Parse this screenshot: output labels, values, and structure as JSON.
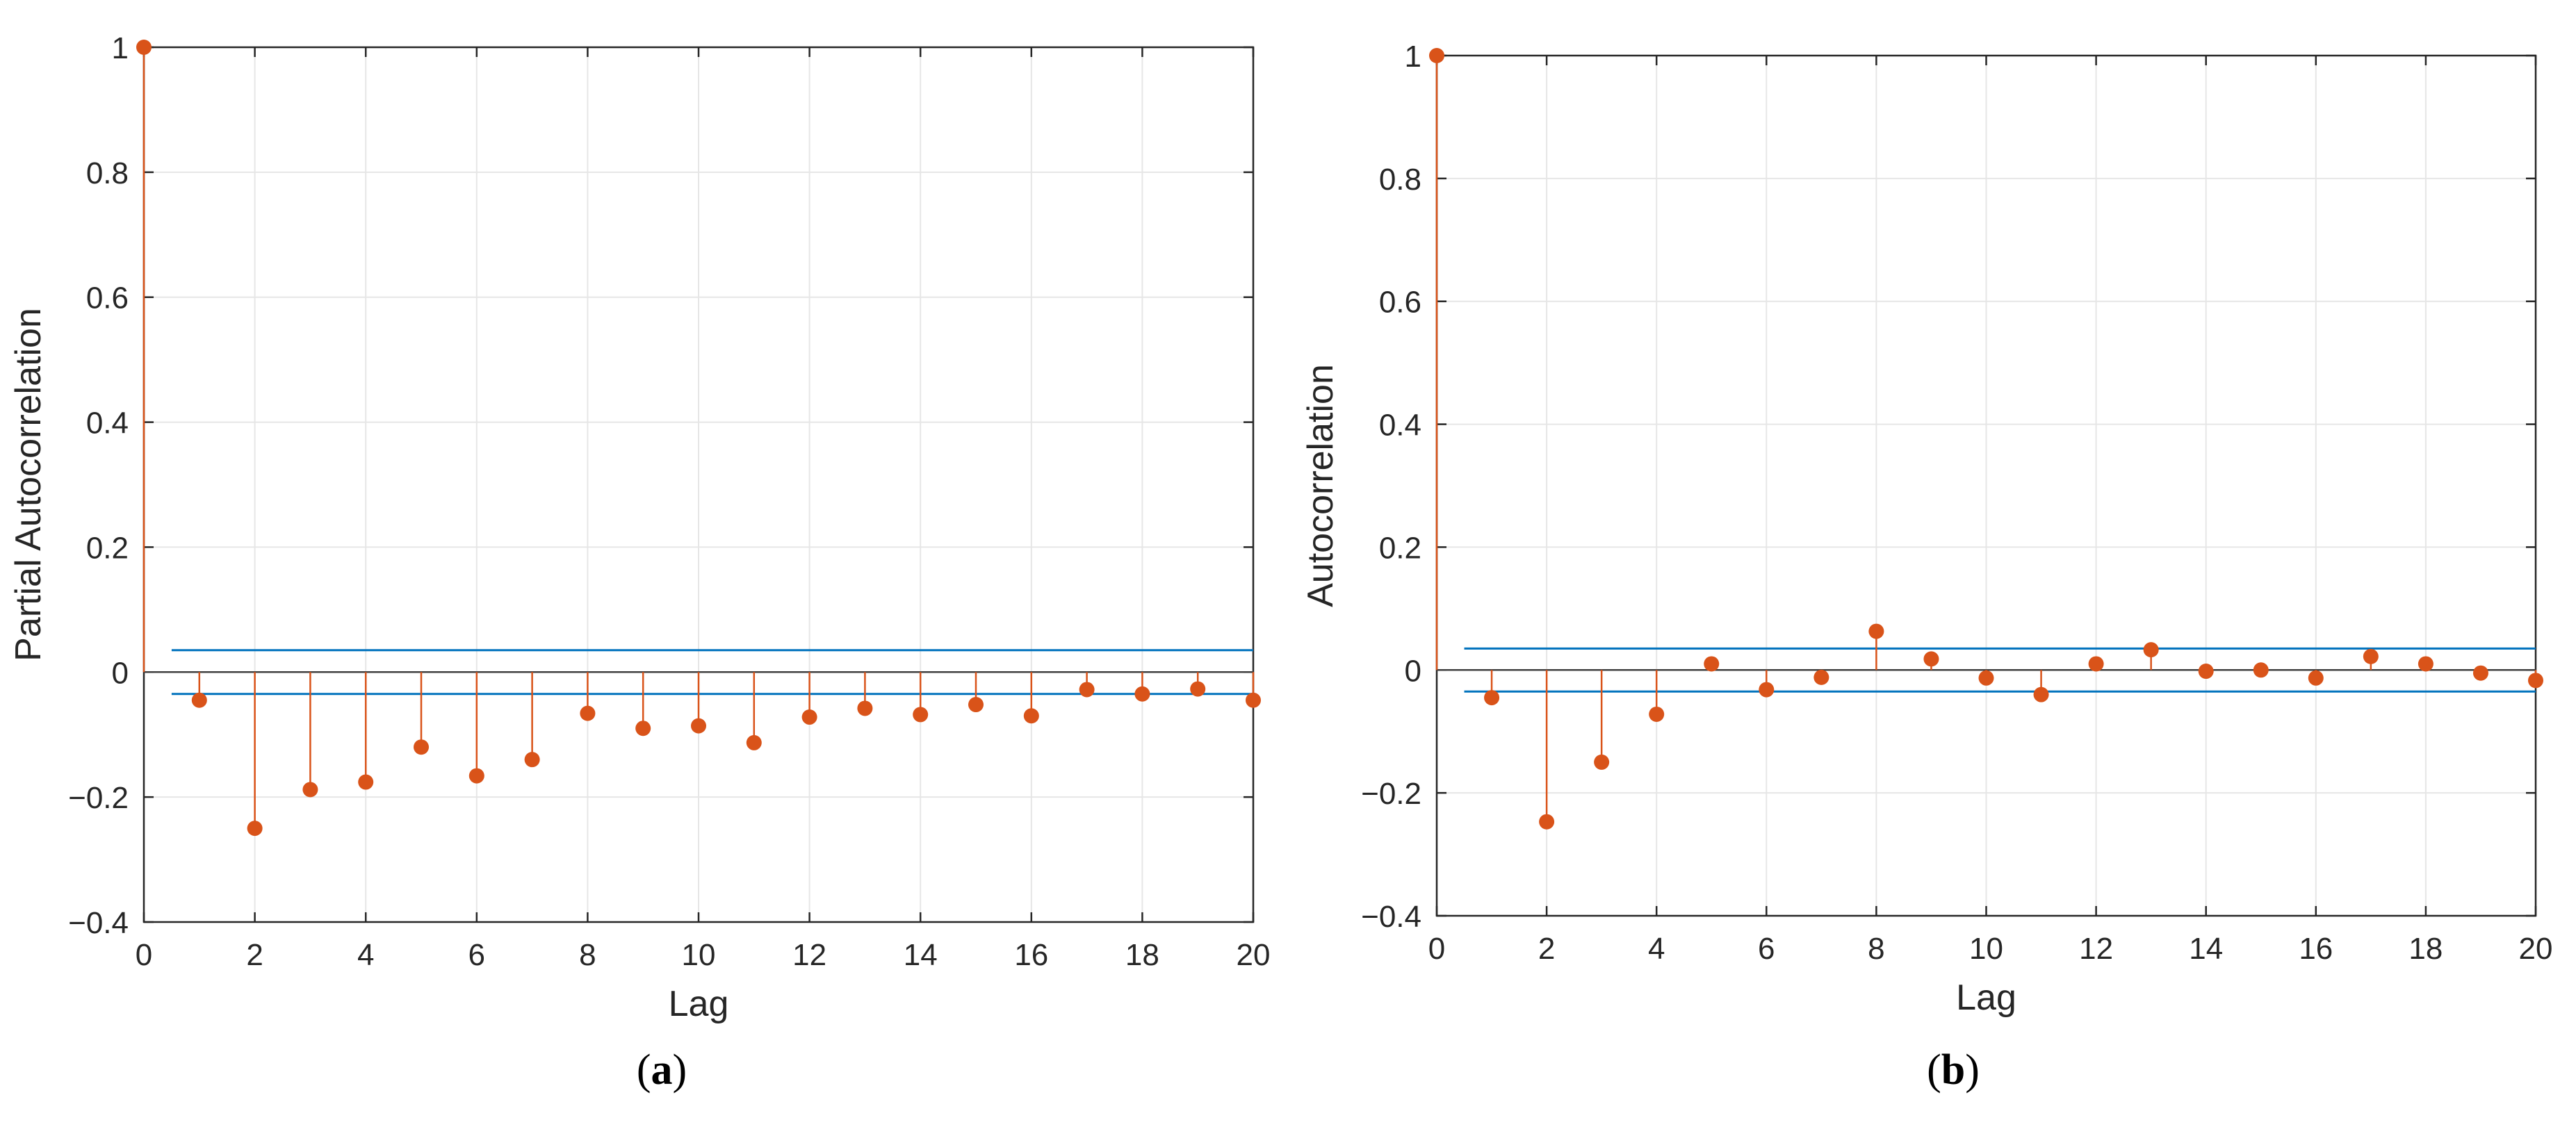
{
  "colors": {
    "stem": "#D95319",
    "marker": "#D95319",
    "bound": "#0072BD",
    "grid": "#E6E6E6",
    "axis": "#262626",
    "zero": "#404040"
  },
  "chart_data": [
    {
      "type": "stem",
      "panel_label": "a",
      "xlabel": "Lag",
      "ylabel": "Partial Autocorrelation",
      "xlim": [
        0,
        20
      ],
      "ylim": [
        -0.4,
        1
      ],
      "xticks": [
        0,
        2,
        4,
        6,
        8,
        10,
        12,
        14,
        16,
        18,
        20
      ],
      "yticks": [
        -0.4,
        -0.2,
        0,
        0.2,
        0.4,
        0.6,
        0.8,
        1
      ],
      "ytick_labels": [
        "−0.4",
        "−0.2",
        "0",
        "0.2",
        "0.4",
        "0.6",
        "0.8",
        "1"
      ],
      "grid": true,
      "confidence_bounds": [
        0.035,
        -0.035
      ],
      "bounds_start": 0.5,
      "x": [
        0,
        1,
        2,
        3,
        4,
        5,
        6,
        7,
        8,
        9,
        10,
        11,
        12,
        13,
        14,
        15,
        16,
        17,
        18,
        19,
        20
      ],
      "y": [
        1,
        -0.045,
        -0.25,
        -0.188,
        -0.176,
        -0.12,
        -0.166,
        -0.14,
        -0.066,
        -0.09,
        -0.086,
        -0.113,
        -0.072,
        -0.058,
        -0.068,
        -0.052,
        -0.07,
        -0.028,
        -0.035,
        -0.027,
        -0.045
      ]
    },
    {
      "type": "stem",
      "panel_label": "b",
      "xlabel": "Lag",
      "ylabel": "Autocorrelation",
      "xlim": [
        0,
        20
      ],
      "ylim": [
        -0.4,
        1
      ],
      "xticks": [
        0,
        2,
        4,
        6,
        8,
        10,
        12,
        14,
        16,
        18,
        20
      ],
      "yticks": [
        -0.4,
        -0.2,
        0,
        0.2,
        0.4,
        0.6,
        0.8,
        1
      ],
      "ytick_labels": [
        "−0.4",
        "−0.2",
        "0",
        "0.2",
        "0.4",
        "0.6",
        "0.8",
        "1"
      ],
      "grid": true,
      "confidence_bounds": [
        0.035,
        -0.035
      ],
      "bounds_start": 0.5,
      "x": [
        0,
        1,
        2,
        3,
        4,
        5,
        6,
        7,
        8,
        9,
        10,
        11,
        12,
        13,
        14,
        15,
        16,
        17,
        18,
        19,
        20
      ],
      "y": [
        1,
        -0.045,
        -0.247,
        -0.15,
        -0.072,
        0.01,
        -0.032,
        -0.012,
        0.063,
        0.018,
        -0.013,
        -0.04,
        0.01,
        0.033,
        -0.002,
        0.0,
        -0.013,
        0.022,
        0.01,
        -0.005,
        -0.017
      ]
    }
  ]
}
